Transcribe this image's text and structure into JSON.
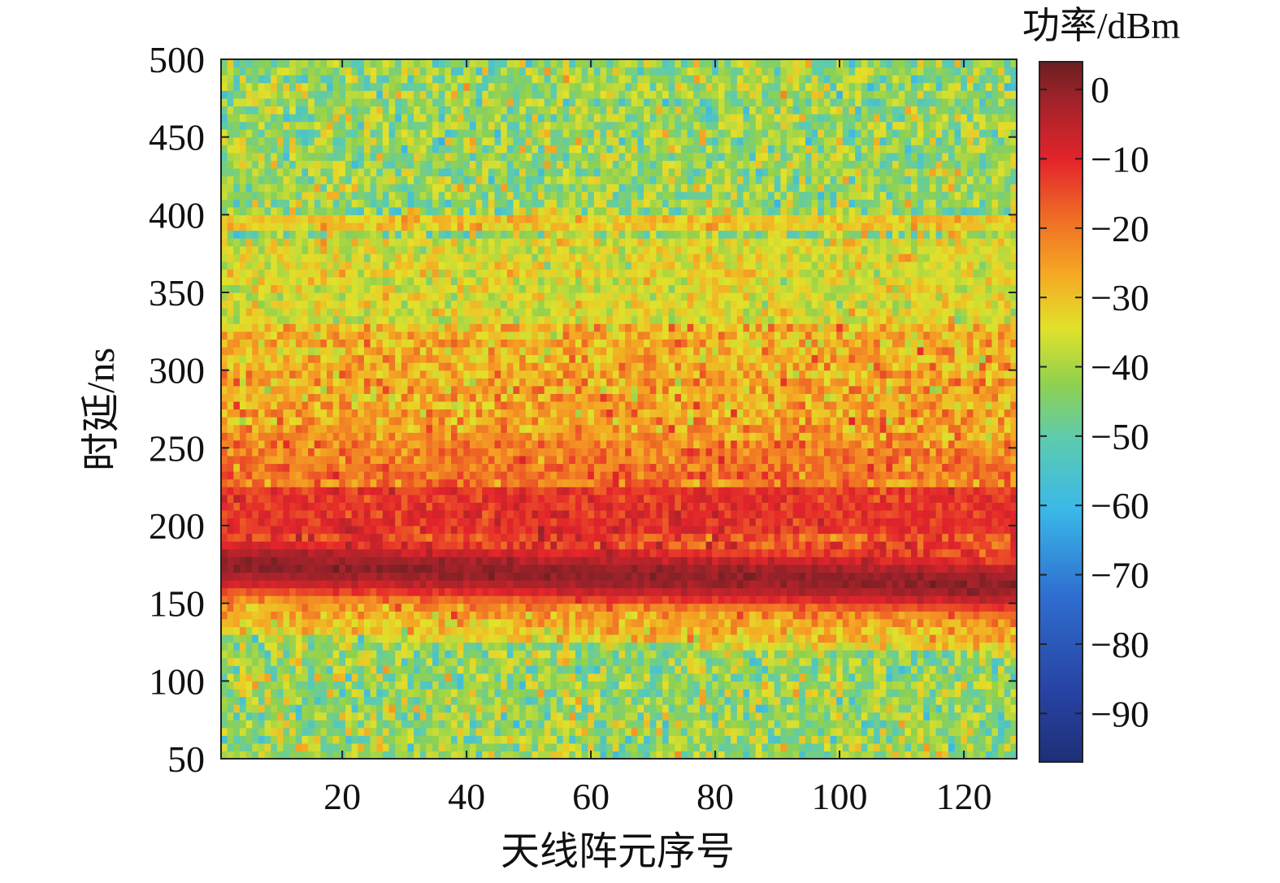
{
  "chart_data": {
    "type": "heatmap",
    "title": "",
    "xlabel": "天线阵元序号",
    "ylabel": "时延/ns",
    "colorbar_label": "功率/dBm",
    "x_range": [
      1,
      128
    ],
    "y_range": [
      50,
      500
    ],
    "x_ticks": [
      20,
      40,
      60,
      80,
      100,
      120
    ],
    "x_tick_labels": [
      "20",
      "40",
      "60",
      "80",
      "100",
      "120"
    ],
    "y_ticks": [
      50,
      100,
      150,
      200,
      250,
      300,
      350,
      400,
      450,
      500
    ],
    "y_tick_labels": [
      "50",
      "100",
      "150",
      "200",
      "250",
      "300",
      "350",
      "400",
      "450",
      "500"
    ],
    "color_range": [
      -97,
      4
    ],
    "colorbar_ticks": [
      0,
      -10,
      -20,
      -30,
      -40,
      -50,
      -60,
      -70,
      -80,
      -90
    ],
    "colorbar_tick_labels": [
      "0",
      "−10",
      "−20",
      "−30",
      "−40",
      "−50",
      "−60",
      "−70",
      "−80",
      "−90"
    ],
    "colormap": "jet",
    "bins": {
      "antenna_elements": 128,
      "delay_rows": 90
    },
    "features": [
      {
        "description": "strong line-of-sight path",
        "delay_at_element_1_ns": 175,
        "delay_at_element_128_ns": 162,
        "power_dBm": 0
      },
      {
        "description": "strong multipath band",
        "delay_range_ns": [
          195,
          225
        ],
        "power_dBm": -12
      },
      {
        "description": "moderate multipath region",
        "delay_range_ns": [
          230,
          330
        ],
        "power_dBm": -24
      },
      {
        "description": "weak reflection",
        "delay_ns": 395,
        "power_dBm": -30
      },
      {
        "description": "noise floor",
        "power_dBm": -42
      }
    ]
  }
}
